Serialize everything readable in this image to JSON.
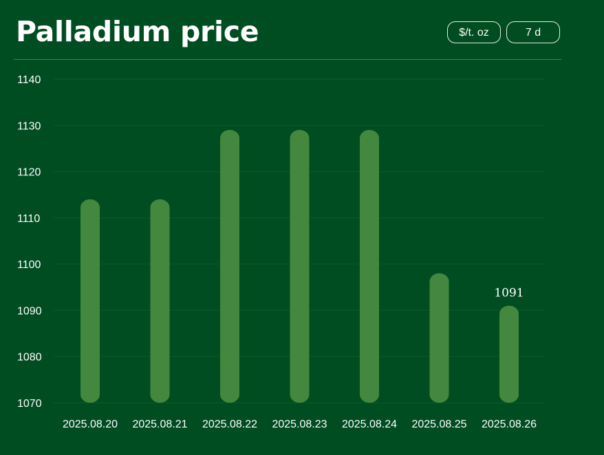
{
  "header": {
    "title": "Palladium price",
    "unit_button": "$/t. oz",
    "range_button": "7 d"
  },
  "colors": {
    "background": "#004d22",
    "bar": "#43883e",
    "grid": "#0e5a2b"
  },
  "chart_data": {
    "type": "bar",
    "categories": [
      "2025.08.20",
      "2025.08.21",
      "2025.08.22",
      "2025.08.23",
      "2025.08.24",
      "2025.08.25",
      "2025.08.26"
    ],
    "values": [
      1114,
      1114,
      1129,
      1129,
      1129,
      1098,
      1091
    ],
    "ylim": [
      1070,
      1140
    ],
    "yticks": [
      1070,
      1080,
      1090,
      1100,
      1110,
      1120,
      1130,
      1140
    ],
    "grid": true,
    "data_labels": [
      {
        "index": 6,
        "text": "1091"
      }
    ]
  }
}
